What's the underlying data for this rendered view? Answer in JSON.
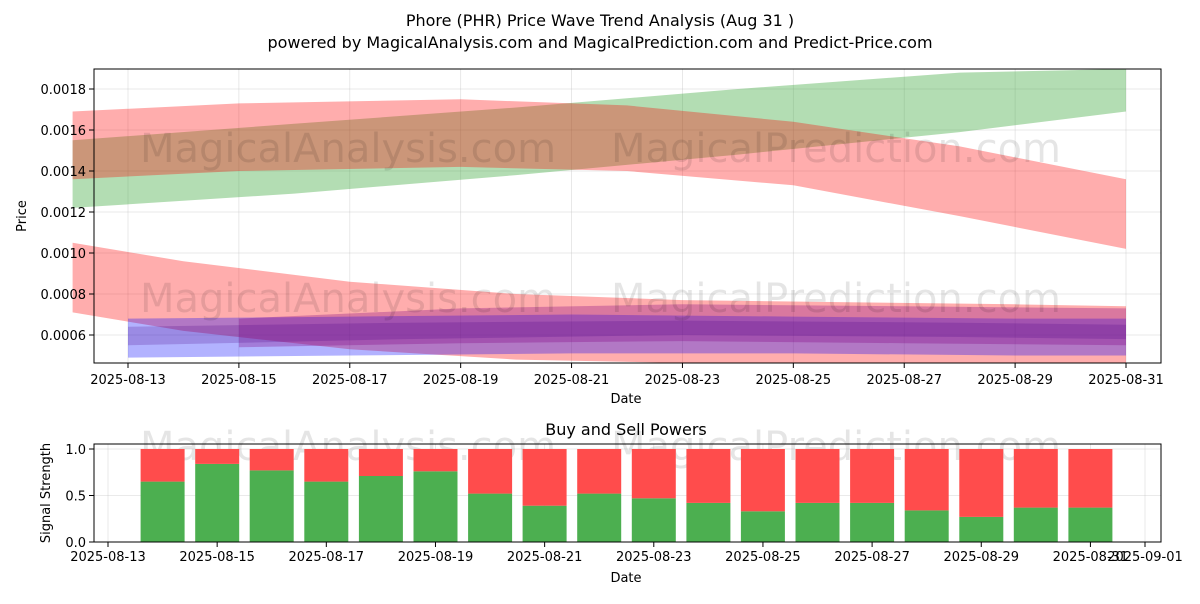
{
  "title": "Phore (PHR) Price Wave Trend Analysis (Aug 31 )",
  "subtitle": "powered by MagicalAnalysis.com and MagicalPrediction.com and Predict-Price.com",
  "watermarks": [
    "MagicalAnalysis.com",
    "MagicalPrediction.com"
  ],
  "chart_data": [
    {
      "type": "area",
      "xlabel": "Date",
      "ylabel": "Price",
      "xlim": [
        "2025-08-12",
        "2025-08-31"
      ],
      "ylim": [
        0.00046,
        0.0019
      ],
      "xticks": [
        "2025-08-13",
        "2025-08-15",
        "2025-08-17",
        "2025-08-19",
        "2025-08-21",
        "2025-08-23",
        "2025-08-25",
        "2025-08-27",
        "2025-08-29",
        "2025-08-31"
      ],
      "yticks": [
        0.0006,
        0.0008,
        0.001,
        0.0012,
        0.0014,
        0.0016,
        0.0018
      ],
      "ytick_labels": [
        "0.0006",
        "0.0008",
        "0.0010",
        "0.0012",
        "0.0014",
        "0.0016",
        "0.0018"
      ],
      "grid": true,
      "bands": [
        {
          "color": "#2ca02c",
          "opacity": 0.36,
          "x": [
            "2025-08-12",
            "2025-08-16",
            "2025-08-20",
            "2025-08-24",
            "2025-08-28",
            "2025-08-31"
          ],
          "upper": [
            0.00155,
            0.00163,
            0.00171,
            0.0018,
            0.00188,
            0.0019
          ],
          "lower": [
            0.00122,
            0.00129,
            0.00138,
            0.00148,
            0.00159,
            0.00169
          ]
        },
        {
          "color": "#ff0000",
          "opacity": 0.32,
          "x": [
            "2025-08-12",
            "2025-08-15",
            "2025-08-19",
            "2025-08-22",
            "2025-08-25",
            "2025-08-28",
            "2025-08-31"
          ],
          "upper": [
            0.00169,
            0.00173,
            0.00175,
            0.00172,
            0.00164,
            0.00152,
            0.00136
          ],
          "lower": [
            0.00136,
            0.0014,
            0.00142,
            0.0014,
            0.00133,
            0.00118,
            0.00102
          ]
        },
        {
          "color": "#ff0000",
          "opacity": 0.32,
          "x": [
            "2025-08-12",
            "2025-08-14",
            "2025-08-17",
            "2025-08-20",
            "2025-08-23",
            "2025-08-26",
            "2025-08-29",
            "2025-08-31"
          ],
          "upper": [
            0.00105,
            0.00096,
            0.00086,
            0.0008,
            0.00077,
            0.00076,
            0.00075,
            0.00074
          ],
          "lower": [
            0.00071,
            0.00062,
            0.00053,
            0.00048,
            0.00046,
            0.00046,
            0.00046,
            0.00046
          ]
        },
        {
          "color": "#0000ff",
          "opacity": 0.3,
          "x": [
            "2025-08-13",
            "2025-08-17",
            "2025-08-21",
            "2025-08-25",
            "2025-08-29",
            "2025-08-31"
          ],
          "upper": [
            0.00068,
            0.00069,
            0.0007,
            0.00069,
            0.00068,
            0.00068
          ],
          "lower": [
            0.00049,
            0.0005,
            0.00051,
            0.00051,
            0.0005,
            0.0005
          ]
        },
        {
          "color": "#800080",
          "opacity": 0.3,
          "x": [
            "2025-08-15",
            "2025-08-19",
            "2025-08-23",
            "2025-08-27",
            "2025-08-31"
          ],
          "upper": [
            0.00068,
            0.00073,
            0.00075,
            0.00074,
            0.00073
          ],
          "lower": [
            0.00054,
            0.00056,
            0.00057,
            0.00056,
            0.00055
          ]
        },
        {
          "color": "#4b0082",
          "opacity": 0.22,
          "x": [
            "2025-08-13",
            "2025-08-18",
            "2025-08-23",
            "2025-08-28",
            "2025-08-31"
          ],
          "upper": [
            0.00064,
            0.00066,
            0.00067,
            0.00066,
            0.00065
          ],
          "lower": [
            0.00055,
            0.00058,
            0.0006,
            0.00059,
            0.00058
          ]
        }
      ]
    },
    {
      "type": "bar",
      "title": "Buy and Sell Powers",
      "xlabel": "Date",
      "ylabel": "Signal Strength",
      "xlim": [
        "2025-08-12",
        "2025-09-01"
      ],
      "ylim": [
        0,
        1.05
      ],
      "yticks": [
        0.0,
        0.5,
        1.0
      ],
      "ytick_labels": [
        "0.0",
        "0.5",
        "1.0"
      ],
      "xticks": [
        "2025-08-13",
        "2025-08-15",
        "2025-08-17",
        "2025-08-19",
        "2025-08-21",
        "2025-08-23",
        "2025-08-25",
        "2025-08-27",
        "2025-08-29",
        "2025-08-31",
        "2025-09-01"
      ],
      "grid": true,
      "categories": [
        "2025-08-14",
        "2025-08-15",
        "2025-08-16",
        "2025-08-17",
        "2025-08-18",
        "2025-08-19",
        "2025-08-20",
        "2025-08-21",
        "2025-08-22",
        "2025-08-23",
        "2025-08-24",
        "2025-08-25",
        "2025-08-26",
        "2025-08-27",
        "2025-08-28",
        "2025-08-29",
        "2025-08-30",
        "2025-08-31"
      ],
      "series": [
        {
          "color": "#4caf50",
          "values": [
            0.65,
            0.84,
            0.77,
            0.65,
            0.71,
            0.76,
            0.52,
            0.39,
            0.52,
            0.47,
            0.42,
            0.33,
            0.42,
            0.42,
            0.34,
            0.27,
            0.37,
            0.37
          ]
        },
        {
          "color": "#ff4c4c",
          "values": [
            0.35,
            0.16,
            0.23,
            0.35,
            0.29,
            0.24,
            0.48,
            0.61,
            0.48,
            0.53,
            0.58,
            0.67,
            0.58,
            0.58,
            0.66,
            0.73,
            0.63,
            0.63
          ]
        }
      ]
    }
  ]
}
